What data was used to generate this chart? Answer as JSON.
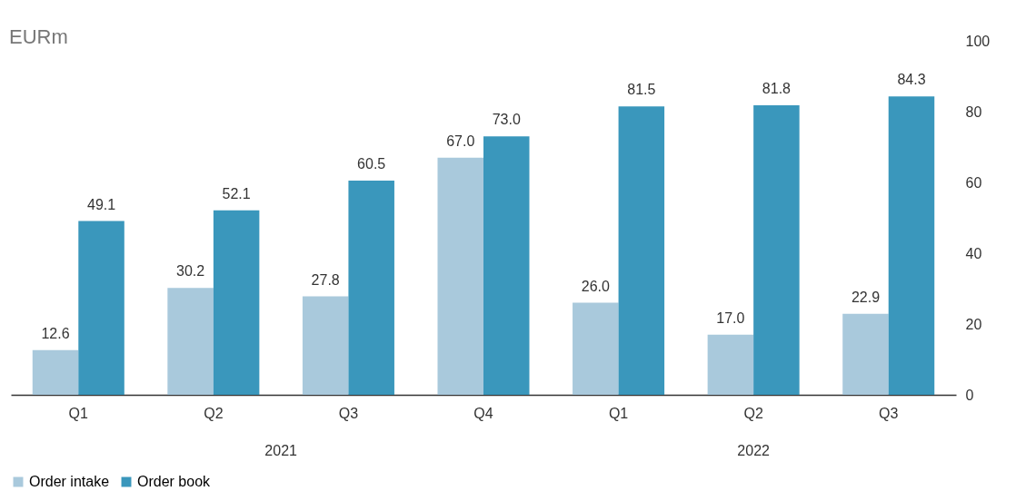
{
  "chart_data": {
    "type": "bar",
    "ylabel": "EURm",
    "categories": [
      "Q1",
      "Q2",
      "Q3",
      "Q4",
      "Q1",
      "Q2",
      "Q3"
    ],
    "series": [
      {
        "name": "Order intake",
        "color": "#a9c9dc",
        "values": [
          12.6,
          30.2,
          27.8,
          67.0,
          26.0,
          17.0,
          22.9
        ],
        "value_labels": [
          "12.6",
          "30.2",
          "27.8",
          "67.0",
          "26.0",
          "17.0",
          "22.9"
        ]
      },
      {
        "name": "Order book",
        "color": "#3a97bc",
        "values": [
          49.1,
          52.1,
          60.5,
          73.0,
          81.5,
          81.8,
          84.3
        ],
        "value_labels": [
          "49.1",
          "52.1",
          "60.5",
          "73.0",
          "81.5",
          "81.8",
          "84.3"
        ]
      }
    ],
    "ylim": [
      0,
      100
    ],
    "yticks": [
      0,
      20,
      40,
      60,
      80,
      100
    ],
    "annotations": [
      "2021",
      "2022"
    ],
    "grid": false,
    "legend": "bottom"
  }
}
